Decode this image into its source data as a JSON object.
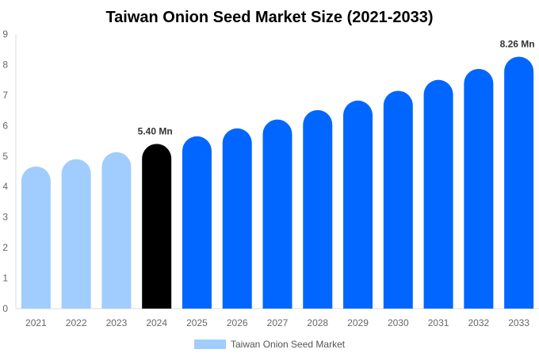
{
  "chart_data": {
    "type": "bar",
    "title": "Taiwan Onion Seed Market Size (2021-2033)",
    "xlabel": "",
    "ylabel": "",
    "ylim": [
      0,
      9
    ],
    "yticks": [
      0,
      1,
      2,
      3,
      4,
      5,
      6,
      7,
      8,
      9
    ],
    "grid": false,
    "legend_position": "bottom",
    "categories": [
      "2021",
      "2022",
      "2023",
      "2024",
      "2025",
      "2026",
      "2027",
      "2028",
      "2029",
      "2030",
      "2031",
      "2032",
      "2033"
    ],
    "series": [
      {
        "name": "Taiwan Onion Seed Market",
        "values": [
          4.66,
          4.9,
          5.13,
          5.4,
          5.65,
          5.91,
          6.2,
          6.51,
          6.82,
          7.14,
          7.5,
          7.86,
          8.26
        ]
      }
    ],
    "bar_colors": [
      "#a0cdfd",
      "#a0cdfd",
      "#a0cdfd",
      "#000000",
      "#0066ff",
      "#0066ff",
      "#0066ff",
      "#0066ff",
      "#0066ff",
      "#0066ff",
      "#0066ff",
      "#0066ff",
      "#0066ff"
    ],
    "legend_color": "#a0cdfd",
    "data_labels": [
      {
        "category": "2024",
        "text": "5.40 Mn"
      },
      {
        "category": "2033",
        "text": "8.26 Mn"
      }
    ]
  }
}
